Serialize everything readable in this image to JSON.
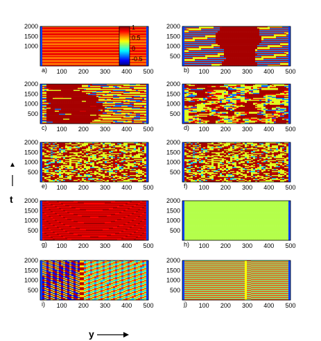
{
  "figure": {
    "y_axis_label": "t",
    "x_axis_label": "y"
  },
  "colorbar": {
    "ticks": [
      {
        "value": 1,
        "label": "1"
      },
      {
        "value": 0.5,
        "label": "0.5"
      },
      {
        "value": 0,
        "label": "0"
      },
      {
        "value": -0.5,
        "label": "-0.5"
      }
    ],
    "range": [
      -0.8,
      1.05
    ],
    "colormap": "jet"
  },
  "chart_data": [
    {
      "id": "a",
      "label": "a)",
      "type": "heatmap",
      "pattern": "horizontal-stripes",
      "xlim": [
        0,
        500
      ],
      "ylim": [
        0,
        2000
      ],
      "xticks": [
        100,
        200,
        300,
        400,
        500
      ],
      "yticks": [
        1000,
        1500,
        2000
      ]
    },
    {
      "id": "b",
      "label": "b)",
      "type": "heatmap",
      "pattern": "central-red-domain",
      "xlim": [
        0,
        500
      ],
      "ylim": [
        0,
        2000
      ],
      "xticks": [
        100,
        200,
        300,
        400,
        500
      ],
      "yticks": [
        500,
        1000,
        1500,
        2000
      ]
    },
    {
      "id": "c",
      "label": "c)",
      "type": "heatmap",
      "pattern": "left-red-domain",
      "xlim": [
        0,
        500
      ],
      "ylim": [
        0,
        2000
      ],
      "xticks": [
        100,
        200,
        300,
        400,
        500
      ],
      "yticks": [
        500,
        1000,
        1500,
        2000
      ]
    },
    {
      "id": "d",
      "label": "d)",
      "type": "heatmap",
      "pattern": "irregular-patches",
      "xlim": [
        0,
        500
      ],
      "ylim": [
        0,
        2000
      ],
      "xticks": [
        100,
        200,
        300,
        400,
        500
      ],
      "yticks": [
        500,
        1000,
        1500,
        2000
      ]
    },
    {
      "id": "e",
      "label": "e)",
      "type": "heatmap",
      "pattern": "turbulent",
      "xlim": [
        0,
        500
      ],
      "ylim": [
        0,
        2000
      ],
      "xticks": [
        100,
        200,
        300,
        400,
        500
      ],
      "yticks": [
        500,
        1000,
        1500,
        2000
      ]
    },
    {
      "id": "f",
      "label": "f)",
      "type": "heatmap",
      "pattern": "turbulent",
      "xlim": [
        0,
        500
      ],
      "ylim": [
        0,
        2000
      ],
      "xticks": [
        100,
        200,
        300,
        400,
        500
      ],
      "yticks": [
        500,
        1000,
        1500,
        2000
      ]
    },
    {
      "id": "g",
      "label": "g)",
      "type": "heatmap",
      "pattern": "red-arched-stripes",
      "xlim": [
        0,
        500
      ],
      "ylim": [
        0,
        2000
      ],
      "xticks": [
        100,
        200,
        300,
        400,
        500
      ],
      "yticks": [
        500,
        1000,
        1500,
        2000
      ]
    },
    {
      "id": "h",
      "label": "h)",
      "type": "heatmap",
      "pattern": "uniform-cyan",
      "xlim": [
        0,
        500
      ],
      "ylim": [
        0,
        2000
      ],
      "xticks": [
        100,
        200,
        300,
        400,
        500
      ],
      "yticks": [
        500,
        1000,
        1500,
        2000
      ]
    },
    {
      "id": "i",
      "label": "i)",
      "type": "heatmap",
      "pattern": "diagonal-waves",
      "xlim": [
        0,
        500
      ],
      "ylim": [
        0,
        2000
      ],
      "xticks": [
        100,
        200,
        300,
        400,
        500
      ],
      "yticks": [
        500,
        1000,
        1500,
        2000
      ]
    },
    {
      "id": "j",
      "label": "j)",
      "type": "heatmap",
      "pattern": "shifted-stripes",
      "xlim": [
        0,
        500
      ],
      "ylim": [
        0,
        2000
      ],
      "xticks": [
        100,
        200,
        300,
        400,
        500
      ],
      "yticks": [
        500,
        1000,
        1500,
        2000
      ]
    }
  ]
}
